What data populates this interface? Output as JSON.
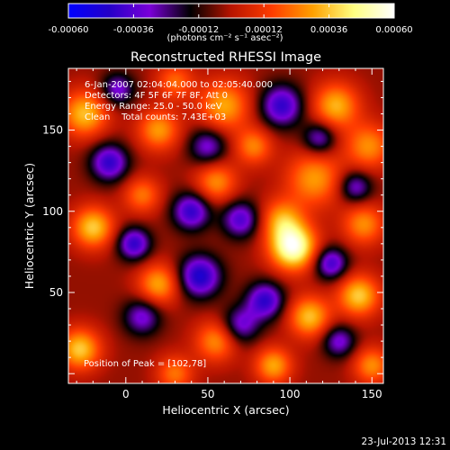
{
  "colorbar": {
    "ticks": [
      -0.0006,
      -0.00036,
      -0.00012,
      0.00012,
      0.00036,
      0.0006
    ],
    "tick_labels": [
      "-0.00060",
      "-0.00036",
      "-0.00012",
      "0.00012",
      "0.00036",
      "0.00060"
    ],
    "range": [
      -0.0006,
      0.0006
    ],
    "unit_label": "(photons cm⁻² s⁻¹ asec⁻²)",
    "colors": [
      "#0000ff",
      "#2400c8",
      "#7a00d8",
      "#000000",
      "#b81400",
      "#ff3c00",
      "#ffa000",
      "#ffff80",
      "#ffffff"
    ]
  },
  "chart_data": {
    "type": "heatmap",
    "title": "Reconstructed RHESSI Image",
    "xlabel": "Heliocentric X (arcsec)",
    "ylabel": "Heliocentric Y (arcsec)",
    "xlim": [
      -35,
      157
    ],
    "ylim": [
      -6,
      188
    ],
    "x_ticks": [
      0,
      50,
      100,
      150
    ],
    "y_ticks": [
      50,
      100,
      150
    ],
    "x_tick_labels": [
      "0",
      "50",
      "100",
      "150"
    ],
    "y_tick_labels": [
      "50",
      "100",
      "150"
    ],
    "peak": {
      "x": 102,
      "y": 78,
      "value": 0.0006
    },
    "blobs": [
      {
        "x": 102,
        "y": 78,
        "w": 0.0006,
        "s": 10
      },
      {
        "x": 95,
        "y": 95,
        "w": 0.0003,
        "s": 9
      },
      {
        "x": 115,
        "y": 120,
        "w": 0.00032,
        "s": 12
      },
      {
        "x": 60,
        "y": 165,
        "w": 0.00034,
        "s": 11
      },
      {
        "x": 128,
        "y": 165,
        "w": 0.00036,
        "s": 10
      },
      {
        "x": 148,
        "y": 140,
        "w": 0.0003,
        "s": 10
      },
      {
        "x": 145,
        "y": 92,
        "w": 0.0003,
        "s": 9
      },
      {
        "x": 142,
        "y": 48,
        "w": 0.0004,
        "s": 9
      },
      {
        "x": 112,
        "y": 35,
        "w": 0.00038,
        "s": 9
      },
      {
        "x": 90,
        "y": 5,
        "w": 0.00034,
        "s": 8
      },
      {
        "x": 55,
        "y": 20,
        "w": 0.0003,
        "s": 9
      },
      {
        "x": 20,
        "y": 55,
        "w": 0.00034,
        "s": 9
      },
      {
        "x": -20,
        "y": 90,
        "w": 0.0004,
        "s": 9
      },
      {
        "x": -28,
        "y": 15,
        "w": 0.0004,
        "s": 9
      },
      {
        "x": -25,
        "y": 160,
        "w": 0.00038,
        "s": 10
      },
      {
        "x": 20,
        "y": 150,
        "w": 0.00032,
        "s": 9
      },
      {
        "x": 55,
        "y": 118,
        "w": 0.0003,
        "s": 9
      },
      {
        "x": 10,
        "y": 110,
        "w": 0.00026,
        "s": 8
      },
      {
        "x": 78,
        "y": 140,
        "w": 0.00028,
        "s": 8
      },
      {
        "x": 30,
        "y": 180,
        "w": 0.00024,
        "s": 8
      },
      {
        "x": 30,
        "y": 0,
        "w": 0.00026,
        "s": 8
      },
      {
        "x": 150,
        "y": 5,
        "w": 0.0003,
        "s": 8
      },
      {
        "x": -10,
        "y": 130,
        "w": -0.0004,
        "s": 8
      },
      {
        "x": 5,
        "y": 80,
        "w": -0.0004,
        "s": 7
      },
      {
        "x": 45,
        "y": 60,
        "w": -0.00045,
        "s": 9
      },
      {
        "x": 85,
        "y": 45,
        "w": -0.0004,
        "s": 8
      },
      {
        "x": 40,
        "y": 100,
        "w": -0.0004,
        "s": 8
      },
      {
        "x": 70,
        "y": 95,
        "w": -0.00035,
        "s": 8
      },
      {
        "x": 10,
        "y": 35,
        "w": -0.0003,
        "s": 8
      },
      {
        "x": 95,
        "y": 165,
        "w": -0.0004,
        "s": 9
      },
      {
        "x": 125,
        "y": 68,
        "w": -0.00038,
        "s": 7
      },
      {
        "x": 118,
        "y": 145,
        "w": -0.0003,
        "s": 7
      },
      {
        "x": 50,
        "y": 140,
        "w": -0.0003,
        "s": 8
      },
      {
        "x": 140,
        "y": 115,
        "w": -0.0003,
        "s": 7
      },
      {
        "x": -5,
        "y": 175,
        "w": -0.0003,
        "s": 7
      },
      {
        "x": 70,
        "y": 30,
        "w": -0.0003,
        "s": 8
      },
      {
        "x": 130,
        "y": 20,
        "w": -0.0003,
        "s": 7
      }
    ],
    "annotations": {
      "time_range": "6-Jan-2007 02:04:04.000 to 02:05:40.000",
      "detectors": "Detectors: 4F 5F 6F 7F 8F, Att 0",
      "energy_range": "Energy Range: 25.0 - 50.0 keV",
      "clean": "Clean    Total counts: 7.43E+03",
      "peak_position": "Position of Peak = [102,78]"
    }
  },
  "footer": {
    "date": "23-Jul-2013 12:31"
  }
}
